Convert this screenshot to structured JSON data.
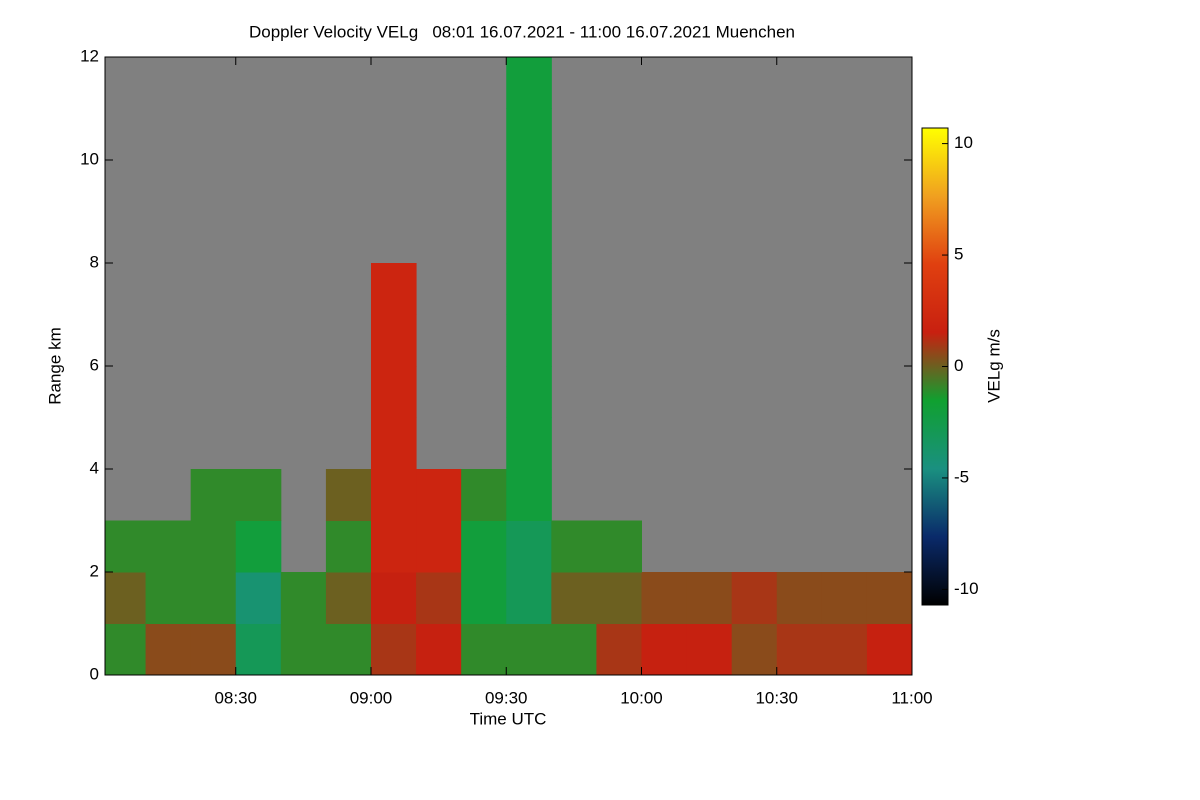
{
  "chart_data": {
    "type": "heatmap",
    "title": "Doppler Velocity VELg   08:01 16.07.2021 - 11:00 16.07.2021 Muenchen",
    "x_label": "Time UTC",
    "y_label": "Range km",
    "colorbar_label": "VELg m/s",
    "xlim": [
      481,
      660
    ],
    "xticks": [
      {
        "value": 510,
        "label": "08:30"
      },
      {
        "value": 540,
        "label": "09:00"
      },
      {
        "value": 570,
        "label": "09:30"
      },
      {
        "value": 600,
        "label": "10:00"
      },
      {
        "value": 630,
        "label": "10:30"
      },
      {
        "value": 660,
        "label": "11:00"
      }
    ],
    "ylim": [
      0,
      12
    ],
    "yticks": [
      0,
      2,
      4,
      6,
      8,
      10,
      12
    ],
    "zlim": [
      -10.7,
      10.7
    ],
    "colorbar_ticks": [
      10,
      5,
      0,
      -5,
      -10
    ],
    "colormap": [
      "#000000",
      "#0a2a6a",
      "#1a9080",
      "#10a030",
      "#c82010",
      "#e04010",
      "#f0a020",
      "#ffff00"
    ],
    "background": "#808080",
    "x_edges": [
      480,
      490,
      500,
      510,
      520,
      530,
      540,
      550,
      560,
      570,
      580,
      590,
      600,
      610,
      620,
      630,
      640,
      650,
      660
    ],
    "y_edges": [
      0,
      1,
      2,
      3,
      4,
      5,
      6,
      7,
      8,
      9,
      10,
      11,
      12
    ],
    "z": [
      [
        -1,
        0.5,
        0.5,
        -3,
        -1,
        -1,
        1,
        1.5,
        -1,
        -1,
        -1,
        1,
        1.5,
        1.5,
        0.5,
        1,
        1,
        1.5
      ],
      [
        0,
        -1,
        -1,
        -4,
        -1,
        0,
        1.5,
        1,
        -2,
        -3,
        0,
        0,
        0.5,
        0.5,
        1,
        0.5,
        0.5,
        0.5
      ],
      [
        -1,
        -1,
        -1,
        -2,
        null,
        -1,
        2,
        2,
        -2,
        -3,
        -1,
        -1,
        null,
        null,
        null,
        null,
        null,
        null
      ],
      [
        null,
        null,
        -1,
        -1,
        null,
        0,
        2,
        2,
        -1,
        -2,
        null,
        null,
        null,
        null,
        null,
        null,
        null,
        null
      ],
      [
        null,
        null,
        null,
        null,
        null,
        null,
        2,
        null,
        null,
        -2,
        null,
        null,
        null,
        null,
        null,
        null,
        null,
        null
      ],
      [
        null,
        null,
        null,
        null,
        null,
        null,
        2,
        null,
        null,
        -2,
        null,
        null,
        null,
        null,
        null,
        null,
        null,
        null
      ],
      [
        null,
        null,
        null,
        null,
        null,
        null,
        2,
        null,
        null,
        -2,
        null,
        null,
        null,
        null,
        null,
        null,
        null,
        null
      ],
      [
        null,
        null,
        null,
        null,
        null,
        null,
        2,
        null,
        null,
        -2,
        null,
        null,
        null,
        null,
        null,
        null,
        null,
        null
      ],
      [
        null,
        null,
        null,
        null,
        null,
        null,
        null,
        null,
        null,
        -2,
        null,
        null,
        null,
        null,
        null,
        null,
        null,
        null
      ],
      [
        null,
        null,
        null,
        null,
        null,
        null,
        null,
        null,
        null,
        -2,
        null,
        null,
        null,
        null,
        null,
        null,
        null,
        null
      ],
      [
        null,
        null,
        null,
        null,
        null,
        null,
        null,
        null,
        null,
        -2,
        null,
        null,
        null,
        null,
        null,
        null,
        null,
        null
      ],
      [
        null,
        null,
        null,
        null,
        null,
        null,
        null,
        null,
        null,
        -2,
        null,
        null,
        null,
        null,
        null,
        null,
        null,
        null
      ]
    ]
  }
}
